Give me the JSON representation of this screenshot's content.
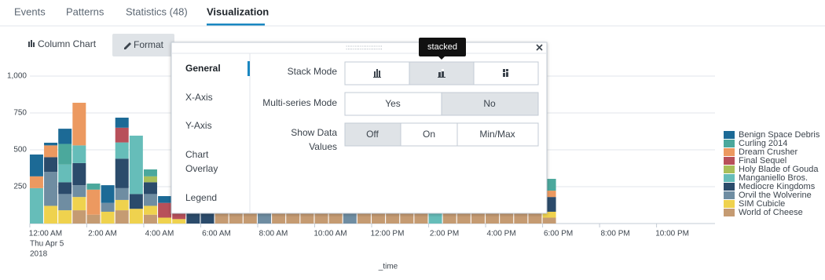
{
  "tabs": [
    "Events",
    "Patterns",
    "Statistics (48)",
    "Visualization"
  ],
  "toolbar": {
    "chart_type": "Column Chart",
    "format": "Format"
  },
  "chart_data": {
    "type": "bar",
    "stacked": true,
    "x_label": "_time",
    "first_tick_date": [
      "Thu Apr 5",
      "2018"
    ],
    "x": [
      0,
      0.5,
      1,
      1.5,
      2,
      2.5,
      3,
      3.5,
      4,
      4.5,
      5,
      5.5,
      6,
      6.5,
      7,
      7.5,
      8,
      8.5,
      9,
      9.5,
      10,
      10.5,
      11,
      11.5,
      12,
      12.5,
      13,
      13.5,
      14,
      14.5,
      15,
      15.5,
      16,
      16.5,
      17,
      17.5,
      18
    ],
    "xlim": [
      -0.55,
      23.5
    ],
    "xticks": [
      {
        "value": 0,
        "label": "12:00 AM"
      },
      {
        "value": 2,
        "label": "2:00 AM"
      },
      {
        "value": 4,
        "label": "4:00 AM"
      },
      {
        "value": 6,
        "label": "6:00 AM"
      },
      {
        "value": 8,
        "label": "8:00 AM"
      },
      {
        "value": 10,
        "label": "10:00 AM"
      },
      {
        "value": 12,
        "label": "12:00 PM"
      },
      {
        "value": 14,
        "label": "2:00 PM"
      },
      {
        "value": 16,
        "label": "4:00 PM"
      },
      {
        "value": 18,
        "label": "6:00 PM"
      },
      {
        "value": 20,
        "label": "8:00 PM"
      },
      {
        "value": 22,
        "label": "10:00 PM"
      }
    ],
    "ylim": [
      0,
      1000
    ],
    "yticks": [
      250,
      500,
      750,
      {
        "value": 1000,
        "label": "1,000"
      }
    ],
    "grid": true,
    "legend": "right",
    "series": [
      {
        "name": "Benign Space Debris",
        "color": "#1c6a96",
        "values": [
          148,
          18,
          103,
          0,
          0,
          120,
          68,
          0,
          0,
          46,
          0,
          0,
          0,
          0,
          0,
          0,
          0,
          0,
          0,
          0,
          0,
          0,
          0,
          0,
          0,
          0,
          0,
          0,
          0,
          0,
          0,
          0,
          0,
          0,
          0,
          0,
          0
        ]
      },
      {
        "name": "Curling 2014",
        "color": "#4ba89c",
        "values": [
          0,
          0,
          140,
          0,
          41,
          0,
          0,
          0,
          47,
          0,
          0,
          0,
          0,
          0,
          0,
          0,
          0,
          0,
          0,
          0,
          0,
          0,
          0,
          0,
          0,
          0,
          0,
          0,
          0,
          0,
          0,
          0,
          0,
          0,
          0,
          0,
          80
        ]
      },
      {
        "name": "Dream Crusher",
        "color": "#ec9960",
        "values": [
          80,
          80,
          0,
          289,
          170,
          0,
          0,
          0,
          0,
          0,
          0,
          0,
          0,
          0,
          0,
          0,
          0,
          0,
          0,
          0,
          0,
          0,
          0,
          0,
          0,
          0,
          0,
          0,
          0,
          0,
          0,
          0,
          0,
          0,
          0,
          0,
          43
        ]
      },
      {
        "name": "Final Sequel",
        "color": "#b8505a",
        "values": [
          0,
          0,
          0,
          0,
          0,
          0,
          100,
          0,
          0,
          100,
          100,
          0,
          0,
          0,
          0,
          0,
          0,
          0,
          0,
          0,
          0,
          0,
          0,
          0,
          0,
          0,
          0,
          0,
          0,
          0,
          0,
          0,
          0,
          0,
          0,
          0,
          0
        ]
      },
      {
        "name": "Holy Blade of Gouda",
        "color": "#a9bf5a",
        "values": [
          0,
          0,
          0,
          0,
          0,
          0,
          0,
          0,
          40,
          0,
          0,
          0,
          0,
          0,
          0,
          0,
          0,
          0,
          0,
          0,
          0,
          0,
          0,
          0,
          0,
          0,
          0,
          0,
          0,
          0,
          0,
          0,
          0,
          0,
          0,
          0,
          0
        ]
      },
      {
        "name": "Manganiello Bros.",
        "color": "#66bdb9",
        "values": [
          240,
          0,
          120,
          120,
          0,
          0,
          110,
          396,
          0,
          0,
          0,
          0,
          0,
          0,
          0,
          0,
          0,
          0,
          0,
          0,
          0,
          0,
          0,
          0,
          0,
          0,
          0,
          0,
          70,
          0,
          0,
          0,
          0,
          0,
          0,
          0,
          0
        ]
      },
      {
        "name": "Mediocre Kingdoms",
        "color": "#2b4b6b",
        "values": [
          0,
          100,
          80,
          150,
          0,
          0,
          200,
          100,
          80,
          0,
          0,
          80,
          80,
          0,
          0,
          0,
          0,
          0,
          0,
          0,
          0,
          0,
          0,
          0,
          0,
          0,
          0,
          0,
          0,
          0,
          0,
          0,
          0,
          0,
          0,
          0,
          100
        ]
      },
      {
        "name": "Orvil the Wolverine",
        "color": "#6f8da2",
        "values": [
          0,
          230,
          110,
          80,
          0,
          60,
          80,
          0,
          80,
          0,
          0,
          0,
          0,
          0,
          0,
          0,
          70,
          0,
          0,
          0,
          0,
          0,
          70,
          0,
          0,
          0,
          0,
          0,
          0,
          0,
          0,
          0,
          0,
          0,
          0,
          0,
          0
        ]
      },
      {
        "name": "SIM Cubicle",
        "color": "#efd24e",
        "values": [
          0,
          120,
          90,
          90,
          0,
          80,
          70,
          100,
          60,
          40,
          30,
          0,
          0,
          0,
          0,
          0,
          0,
          0,
          0,
          0,
          0,
          0,
          0,
          0,
          0,
          0,
          0,
          0,
          0,
          0,
          0,
          0,
          0,
          0,
          0,
          0,
          40
        ]
      },
      {
        "name": "World of Cheese",
        "color": "#c59b72",
        "values": [
          0,
          0,
          0,
          90,
          60,
          0,
          90,
          0,
          60,
          0,
          0,
          0,
          0,
          70,
          70,
          70,
          0,
          70,
          70,
          70,
          70,
          70,
          0,
          70,
          70,
          70,
          70,
          70,
          0,
          70,
          70,
          70,
          70,
          70,
          70,
          70,
          40
        ]
      }
    ]
  },
  "format_panel": {
    "sections": [
      "General",
      "X-Axis",
      "Y-Axis",
      "Chart",
      "Overlay",
      "Legend"
    ],
    "stack_mode": "Stack Mode",
    "tooltip": "stacked",
    "multi_series": {
      "label": "Multi-series Mode",
      "options": [
        "Yes",
        "No"
      ]
    },
    "show_data_values": {
      "label": [
        "Show Data",
        "Values"
      ],
      "options": [
        "Off",
        "On",
        "Min/Max"
      ]
    }
  }
}
